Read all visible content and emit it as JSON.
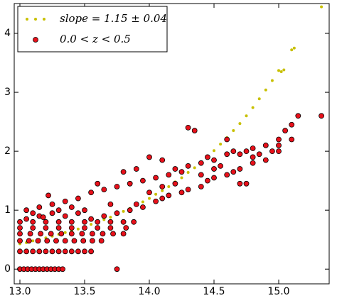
{
  "chart_data": {
    "type": "scatter",
    "xlim": [
      12.956,
      15.39
    ],
    "ylim": [
      -0.25,
      4.506
    ],
    "xticks": [
      {
        "value": 13,
        "label": "13.0"
      },
      13.5,
      {
        "value": 14,
        "label": "14.0"
      },
      14.5,
      {
        "value": 15,
        "label": "15.0"
      }
    ],
    "yticks": [
      0,
      1,
      2,
      3,
      4
    ],
    "legend": "upper left",
    "series": [
      {
        "name": "slope = 1.15 ± 0.04",
        "color": "#c8c000",
        "x": [
          13.0,
          13.05,
          13.1,
          13.15,
          13.2,
          13.25,
          13.3,
          13.35,
          13.4,
          13.45,
          13.5,
          13.55,
          13.6,
          13.65,
          13.7,
          13.75,
          13.8,
          13.85,
          13.9,
          13.95,
          14.0,
          14.05,
          14.1,
          14.15,
          14.2,
          14.25,
          14.3,
          14.35,
          14.4,
          14.45,
          14.5,
          14.55,
          14.6,
          14.65,
          14.7,
          14.75,
          14.8,
          14.85,
          14.9,
          14.95,
          15.0,
          15.02,
          15.04,
          15.1,
          15.12,
          15.33
        ],
        "values": [
          0.43,
          0.45,
          0.48,
          0.5,
          0.53,
          0.56,
          0.59,
          0.62,
          0.65,
          0.68,
          0.72,
          0.76,
          0.8,
          0.84,
          0.88,
          0.93,
          0.98,
          1.03,
          1.09,
          1.14,
          1.2,
          1.27,
          1.33,
          1.4,
          1.48,
          1.55,
          1.64,
          1.72,
          1.81,
          1.91,
          2.01,
          2.12,
          2.23,
          2.35,
          2.47,
          2.6,
          2.74,
          2.89,
          3.04,
          3.2,
          3.37,
          3.35,
          3.38,
          3.72,
          3.75,
          4.45
        ]
      },
      {
        "name": "0.0 < z < 0.5",
        "color": "#e8101a",
        "x": [
          13.0,
          13.03,
          13.06,
          13.09,
          13.12,
          13.15,
          13.18,
          13.21,
          13.24,
          13.27,
          13.3,
          13.33,
          13.75,
          13.0,
          13.05,
          13.1,
          13.15,
          13.2,
          13.25,
          13.3,
          13.35,
          13.4,
          13.45,
          13.5,
          13.55,
          13.0,
          13.07,
          13.14,
          13.21,
          13.28,
          13.35,
          13.42,
          13.49,
          13.56,
          13.63,
          13.0,
          13.08,
          13.16,
          13.24,
          13.32,
          13.4,
          13.48,
          13.56,
          13.64,
          13.72,
          13.8,
          13.0,
          13.1,
          13.2,
          13.3,
          13.4,
          13.5,
          13.6,
          13.7,
          13.82,
          13.0,
          13.1,
          13.2,
          13.3,
          13.4,
          13.5,
          13.6,
          13.7,
          13.8,
          13.88,
          13.05,
          13.05,
          13.15,
          13.15,
          13.25,
          13.25,
          13.35,
          13.35,
          13.45,
          13.45,
          13.55,
          13.55,
          13.65,
          13.65,
          13.75,
          13.75,
          13.85,
          13.85,
          13.9,
          13.9,
          13.95,
          13.95,
          14.05,
          14.05,
          14.1,
          14.1,
          14.15,
          14.15,
          14.25,
          14.25,
          14.3,
          14.3,
          14.4,
          14.4,
          14.45,
          14.45,
          14.5,
          14.5,
          14.6,
          14.6,
          14.65,
          14.65,
          14.7,
          14.7,
          14.75,
          14.75,
          14.8,
          14.8,
          14.9,
          14.9,
          15.0,
          15.0,
          15.1,
          15.1,
          13.22,
          13.8,
          14.3,
          14.35,
          14.6,
          14.7,
          15.15,
          15.05,
          15.33,
          13.6,
          14.0,
          13.18,
          13.5,
          14.2,
          14.55,
          14.85,
          14.95,
          13.1,
          13.3,
          13.4,
          13.7,
          14.0,
          14.1,
          14.2,
          14.4,
          14.5,
          14.8,
          15.0
        ],
        "values": [
          0,
          0,
          0,
          0,
          0,
          0,
          0,
          0,
          0,
          0,
          0,
          0,
          0,
          0.3,
          0.3,
          0.3,
          0.3,
          0.3,
          0.3,
          0.3,
          0.3,
          0.3,
          0.3,
          0.3,
          0.3,
          0.48,
          0.48,
          0.48,
          0.48,
          0.48,
          0.48,
          0.48,
          0.48,
          0.48,
          0.48,
          0.6,
          0.6,
          0.6,
          0.6,
          0.6,
          0.6,
          0.6,
          0.6,
          0.6,
          0.6,
          0.6,
          0.7,
          0.7,
          0.7,
          0.7,
          0.7,
          0.7,
          0.7,
          0.7,
          0.7,
          0.8,
          0.8,
          0.8,
          0.8,
          0.8,
          0.8,
          0.8,
          0.8,
          0.8,
          0.8,
          0.85,
          1.0,
          0.9,
          1.05,
          0.95,
          1.1,
          0.9,
          1.15,
          0.95,
          1.2,
          0.85,
          1.3,
          0.9,
          1.35,
          0.95,
          1.4,
          1.0,
          1.45,
          1.1,
          1.7,
          1.05,
          1.5,
          1.15,
          1.55,
          1.2,
          1.85,
          1.25,
          1.6,
          1.3,
          1.65,
          1.35,
          1.75,
          1.4,
          1.8,
          1.5,
          1.9,
          1.55,
          1.85,
          1.6,
          1.95,
          1.65,
          2.0,
          1.7,
          1.95,
          1.45,
          2.0,
          1.8,
          2.05,
          1.85,
          2.1,
          2.0,
          2.2,
          2.2,
          2.45,
          1.25,
          1.65,
          2.4,
          2.35,
          2.2,
          1.45,
          2.6,
          2.35,
          2.6,
          1.45,
          1.9,
          0.88,
          1.0,
          1.7,
          1.75,
          1.95,
          2.0,
          0.95,
          1.0,
          1.05,
          1.1,
          1.3,
          1.4,
          1.45,
          1.6,
          1.7,
          1.9,
          2.1
        ]
      }
    ]
  }
}
